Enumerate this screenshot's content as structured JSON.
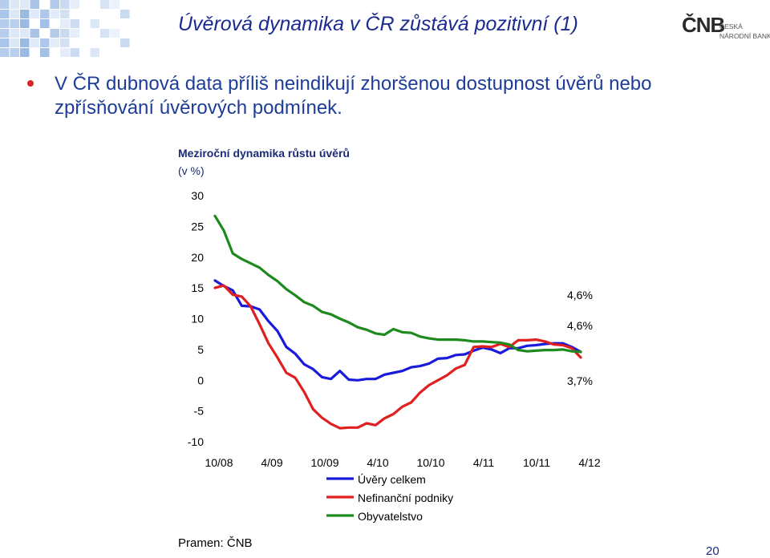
{
  "slide": {
    "title": "Úvěrová dynamika v ČR zůstává pozitivní (1)",
    "bullet": "V ČR dubnová data příliš neindikují zhoršenou dostupnost úvěrů nebo zpřísňování úvěrových podmínek.",
    "source": "Pramen: ČNB",
    "page_number": "20",
    "logo": {
      "mark": "ČNB",
      "line1": "ČESKÁ",
      "line2": "NÁRODNÍ BANKA"
    },
    "colors": {
      "title": "#1b2b8f",
      "bullet_dot": "#d6262b"
    }
  },
  "chart_data": {
    "type": "line",
    "title": "Meziroční dynamika růstu úvěrů",
    "ylabel": "(v %)",
    "ylim": [
      -10,
      30
    ],
    "yticks": [
      "30",
      "25",
      "20",
      "15",
      "10",
      "5",
      "0",
      "-5",
      "-10"
    ],
    "xtick_labels": [
      "10/08",
      "4/09",
      "10/09",
      "4/10",
      "10/10",
      "4/11",
      "10/11",
      "4/12"
    ],
    "x_start": "10/2008",
    "frequency": "monthly",
    "grid": false,
    "legend_position": "bottom",
    "end_labels": [
      "4,6%",
      "4,6%",
      "3,7%"
    ],
    "series": [
      {
        "name": "Úvěry celkem",
        "color": "#1a1adb",
        "values": [
          16.2,
          15.3,
          14.6,
          12.1,
          12.0,
          11.5,
          9.6,
          8.0,
          5.4,
          4.3,
          2.6,
          1.8,
          0.5,
          0.2,
          1.5,
          0.1,
          0.0,
          0.2,
          0.2,
          0.9,
          1.2,
          1.5,
          2.1,
          2.3,
          2.7,
          3.5,
          3.6,
          4.1,
          4.2,
          4.8,
          5.3,
          5.0,
          4.4,
          5.2,
          5.2,
          5.6,
          5.7,
          5.9,
          6.0,
          6.0,
          5.4,
          4.6
        ]
      },
      {
        "name": "Nefinanční podniky",
        "color": "#e02020",
        "values": [
          15.0,
          15.4,
          13.9,
          13.6,
          12.0,
          9.1,
          6.0,
          3.7,
          1.2,
          0.4,
          -1.9,
          -4.7,
          -6.1,
          -7.1,
          -7.8,
          -7.7,
          -7.7,
          -7.0,
          -7.3,
          -6.2,
          -5.5,
          -4.3,
          -3.6,
          -2.0,
          -0.8,
          0.0,
          0.8,
          1.9,
          2.5,
          5.4,
          5.5,
          5.4,
          5.9,
          5.4,
          6.5,
          6.5,
          6.6,
          6.3,
          5.8,
          5.7,
          5.2,
          3.7
        ]
      },
      {
        "name": "Obyvatelstvo",
        "color": "#1e8a1e",
        "values": [
          26.7,
          24.3,
          20.6,
          19.7,
          19.0,
          18.3,
          17.1,
          16.1,
          14.8,
          13.8,
          12.7,
          12.1,
          11.1,
          10.7,
          10.0,
          9.4,
          8.6,
          8.2,
          7.6,
          7.4,
          8.3,
          7.8,
          7.7,
          7.1,
          6.8,
          6.6,
          6.6,
          6.6,
          6.5,
          6.3,
          6.3,
          6.2,
          6.1,
          5.8,
          4.9,
          4.7,
          4.8,
          4.9,
          4.9,
          5.0,
          4.7,
          4.6
        ]
      }
    ]
  }
}
